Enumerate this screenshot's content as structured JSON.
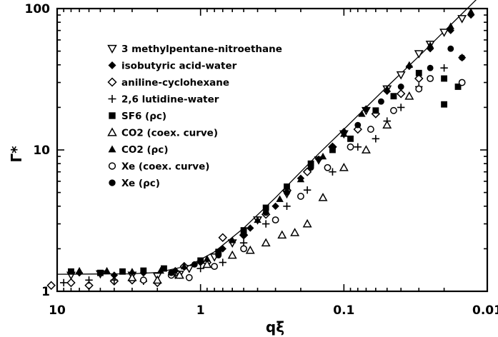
{
  "chart_data": {
    "type": "scatter",
    "title": "",
    "xlabel": "qξ",
    "ylabel": "Γ*",
    "x_scale": "log",
    "y_scale": "log",
    "x_reversed": true,
    "xlim": [
      10,
      0.01
    ],
    "ylim": [
      1,
      100
    ],
    "grid": false,
    "legend_position": "top-left",
    "x_tick_labels": [
      "10",
      "1",
      "0.1",
      "0.01"
    ],
    "y_tick_labels": [
      "1",
      "10",
      "100"
    ],
    "trend_line": [
      [
        10,
        1.32
      ],
      [
        3,
        1.33
      ],
      [
        2,
        1.36
      ],
      [
        1.2,
        1.52
      ],
      [
        0.8,
        1.9
      ],
      [
        0.5,
        2.8
      ],
      [
        0.3,
        4.6
      ],
      [
        0.2,
        7
      ],
      [
        0.15,
        9.4
      ],
      [
        0.1,
        14
      ],
      [
        0.07,
        20
      ],
      [
        0.05,
        28
      ],
      [
        0.03,
        46
      ],
      [
        0.02,
        69
      ],
      [
        0.01,
        138
      ]
    ],
    "series": [
      {
        "name": "3 methylpentane-nitroethane",
        "marker": "triangle-down-open",
        "points": [
          [
            8,
            1.3
          ],
          [
            5,
            1.33
          ],
          [
            3,
            1.3
          ],
          [
            2,
            1.28
          ],
          [
            1.4,
            1.32
          ],
          [
            1.2,
            1.45
          ],
          [
            0.8,
            1.75
          ],
          [
            0.6,
            2.2
          ],
          [
            0.4,
            3.2
          ],
          [
            0.25,
            4.9
          ],
          [
            0.15,
            8.5
          ],
          [
            0.1,
            13
          ],
          [
            0.07,
            19
          ],
          [
            0.05,
            27
          ],
          [
            0.04,
            34
          ],
          [
            0.03,
            48
          ],
          [
            0.025,
            56
          ],
          [
            0.02,
            68
          ],
          [
            0.015,
            85
          ]
        ]
      },
      {
        "name": "isobutyric acid-water",
        "marker": "diamond-filled",
        "points": [
          [
            7,
            1.35
          ],
          [
            4,
            1.3
          ],
          [
            2.5,
            1.35
          ],
          [
            1.5,
            1.4
          ],
          [
            1.0,
            1.6
          ],
          [
            0.7,
            2.0
          ],
          [
            0.45,
            2.8
          ],
          [
            0.3,
            4.0
          ],
          [
            0.2,
            6.3
          ],
          [
            0.15,
            8.6
          ],
          [
            0.1,
            13.5
          ],
          [
            0.07,
            19.5
          ],
          [
            0.05,
            26
          ],
          [
            0.035,
            39
          ],
          [
            0.025,
            52
          ],
          [
            0.018,
            70
          ],
          [
            0.013,
            90
          ]
        ]
      },
      {
        "name": "aniline-cyclohexane",
        "marker": "diamond-open",
        "points": [
          [
            11,
            1.1
          ],
          [
            8,
            1.15
          ],
          [
            6,
            1.1
          ],
          [
            4,
            1.18
          ],
          [
            3,
            1.2
          ],
          [
            2,
            1.15
          ],
          [
            1.3,
            1.5
          ],
          [
            0.9,
            1.6
          ],
          [
            0.7,
            2.4
          ],
          [
            0.5,
            2.5
          ],
          [
            0.35,
            3.5
          ],
          [
            0.25,
            5.2
          ],
          [
            0.18,
            7
          ],
          [
            0.12,
            10.5
          ],
          [
            0.08,
            14
          ],
          [
            0.06,
            18
          ],
          [
            0.04,
            25
          ],
          [
            0.03,
            32
          ]
        ]
      },
      {
        "name": "2,6 lutidine-water",
        "marker": "plus",
        "points": [
          [
            9,
            1.15
          ],
          [
            6,
            1.2
          ],
          [
            4,
            1.2
          ],
          [
            2.5,
            1.18
          ],
          [
            1.5,
            1.3
          ],
          [
            1.0,
            1.45
          ],
          [
            0.7,
            1.6
          ],
          [
            0.5,
            2.2
          ],
          [
            0.35,
            3.0
          ],
          [
            0.25,
            4.0
          ],
          [
            0.18,
            5.2
          ],
          [
            0.12,
            7.0
          ],
          [
            0.08,
            10.5
          ],
          [
            0.06,
            12
          ],
          [
            0.05,
            16
          ],
          [
            0.04,
            20
          ],
          [
            0.03,
            28
          ],
          [
            0.02,
            38
          ],
          [
            0.015,
            45
          ]
        ]
      },
      {
        "name": "SF6 (ρc)",
        "marker": "square-filled",
        "points": [
          [
            8,
            1.38
          ],
          [
            5,
            1.35
          ],
          [
            3.5,
            1.38
          ],
          [
            2.5,
            1.4
          ],
          [
            1.8,
            1.45
          ],
          [
            1.0,
            1.65
          ],
          [
            0.75,
            1.9
          ],
          [
            0.5,
            2.7
          ],
          [
            0.35,
            3.9
          ],
          [
            0.25,
            5.5
          ],
          [
            0.17,
            8
          ],
          [
            0.12,
            10
          ],
          [
            0.09,
            12
          ],
          [
            0.06,
            19
          ],
          [
            0.045,
            24
          ],
          [
            0.03,
            35
          ],
          [
            0.02,
            32
          ],
          [
            0.02,
            21
          ],
          [
            0.016,
            28
          ]
        ]
      },
      {
        "name": "CO2 (coex. curve)",
        "marker": "triangle-up-open",
        "points": [
          [
            3,
            1.25
          ],
          [
            2,
            1.2
          ],
          [
            1.4,
            1.3
          ],
          [
            0.9,
            1.55
          ],
          [
            0.6,
            1.8
          ],
          [
            0.45,
            1.95
          ],
          [
            0.35,
            2.2
          ],
          [
            0.27,
            2.5
          ],
          [
            0.22,
            2.6
          ],
          [
            0.18,
            3.0
          ],
          [
            0.14,
            4.6
          ],
          [
            0.1,
            7.5
          ],
          [
            0.07,
            10
          ],
          [
            0.05,
            15
          ],
          [
            0.035,
            24
          ]
        ]
      },
      {
        "name": "CO2 (ρc)",
        "marker": "triangle-up-filled",
        "points": [
          [
            7,
            1.4
          ],
          [
            4.5,
            1.4
          ],
          [
            3,
            1.38
          ],
          [
            1.9,
            1.4
          ],
          [
            1.3,
            1.5
          ],
          [
            0.9,
            1.7
          ],
          [
            0.6,
            2.3
          ],
          [
            0.4,
            3.2
          ],
          [
            0.28,
            4.5
          ],
          [
            0.2,
            6.2
          ],
          [
            0.14,
            9
          ],
          [
            0.1,
            13
          ],
          [
            0.075,
            18
          ],
          [
            0.05,
            27
          ],
          [
            0.035,
            40
          ],
          [
            0.025,
            55
          ],
          [
            0.018,
            75
          ],
          [
            0.013,
            95
          ]
        ]
      },
      {
        "name": "Xe (coex. curve)",
        "marker": "circle-open",
        "points": [
          [
            2.5,
            1.2
          ],
          [
            1.6,
            1.3
          ],
          [
            1.2,
            1.25
          ],
          [
            0.8,
            1.5
          ],
          [
            0.5,
            2.0
          ],
          [
            0.3,
            3.2
          ],
          [
            0.2,
            4.7
          ],
          [
            0.13,
            7.5
          ],
          [
            0.09,
            10.5
          ],
          [
            0.065,
            14
          ],
          [
            0.045,
            19
          ],
          [
            0.03,
            27
          ],
          [
            0.025,
            32
          ],
          [
            0.015,
            30
          ]
        ]
      },
      {
        "name": "Xe (ρc)",
        "marker": "circle-filled",
        "points": [
          [
            1.6,
            1.35
          ],
          [
            1.1,
            1.55
          ],
          [
            0.75,
            1.8
          ],
          [
            0.5,
            2.5
          ],
          [
            0.35,
            3.6
          ],
          [
            0.25,
            5.0
          ],
          [
            0.17,
            7.5
          ],
          [
            0.12,
            10.5
          ],
          [
            0.08,
            15
          ],
          [
            0.055,
            22
          ],
          [
            0.04,
            28
          ],
          [
            0.025,
            38
          ],
          [
            0.018,
            52
          ],
          [
            0.015,
            45
          ]
        ]
      }
    ]
  }
}
